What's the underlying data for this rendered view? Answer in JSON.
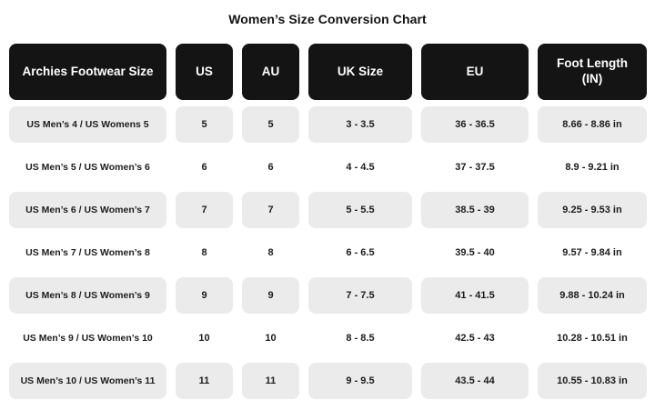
{
  "page": {
    "background": "#ffffff"
  },
  "colors": {
    "header_bg": "#141414",
    "header_text": "#ffffff",
    "row_alt_bg": "#ebebeb",
    "row_text": "#1c1c1c",
    "title_text": "#111111"
  },
  "chart_data": {
    "type": "table",
    "title": "Women’s Size Conversion Chart",
    "columns": [
      "Archies Footwear Size",
      "US",
      "AU",
      "UK Size",
      "EU",
      "Foot Length (IN)"
    ],
    "rows": [
      [
        "US Men’s 4 / US Womens 5",
        "5",
        "5",
        "3 - 3.5",
        "36 - 36.5",
        "8.66 - 8.86 in"
      ],
      [
        "US Men’s 5 / US Women’s 6",
        "6",
        "6",
        "4 - 4.5",
        "37 - 37.5",
        "8.9 - 9.21 in"
      ],
      [
        "US Men’s 6 / US Women’s 7",
        "7",
        "7",
        "5 - 5.5",
        "38.5 - 39",
        "9.25 - 9.53 in"
      ],
      [
        "US Men’s 7 / US Women’s 8",
        "8",
        "8",
        "6 - 6.5",
        "39.5 - 40",
        "9.57 - 9.84 in"
      ],
      [
        "US Men’s 8 / US Women’s 9",
        "9",
        "9",
        "7 - 7.5",
        "41 - 41.5",
        "9.88 - 10.24 in"
      ],
      [
        "US Men’s 9 / US Women’s 10",
        "10",
        "10",
        "8 - 8.5",
        "42.5 - 43",
        "10.28 - 10.51 in"
      ],
      [
        "US Men’s 10 / US Women’s 11",
        "11",
        "11",
        "9 - 9.5",
        "43.5 - 44",
        "10.55 - 10.83 in"
      ]
    ],
    "layout": {
      "striped_rows": "odd-gray",
      "header_style": "black-pill",
      "alignment": "center"
    }
  }
}
